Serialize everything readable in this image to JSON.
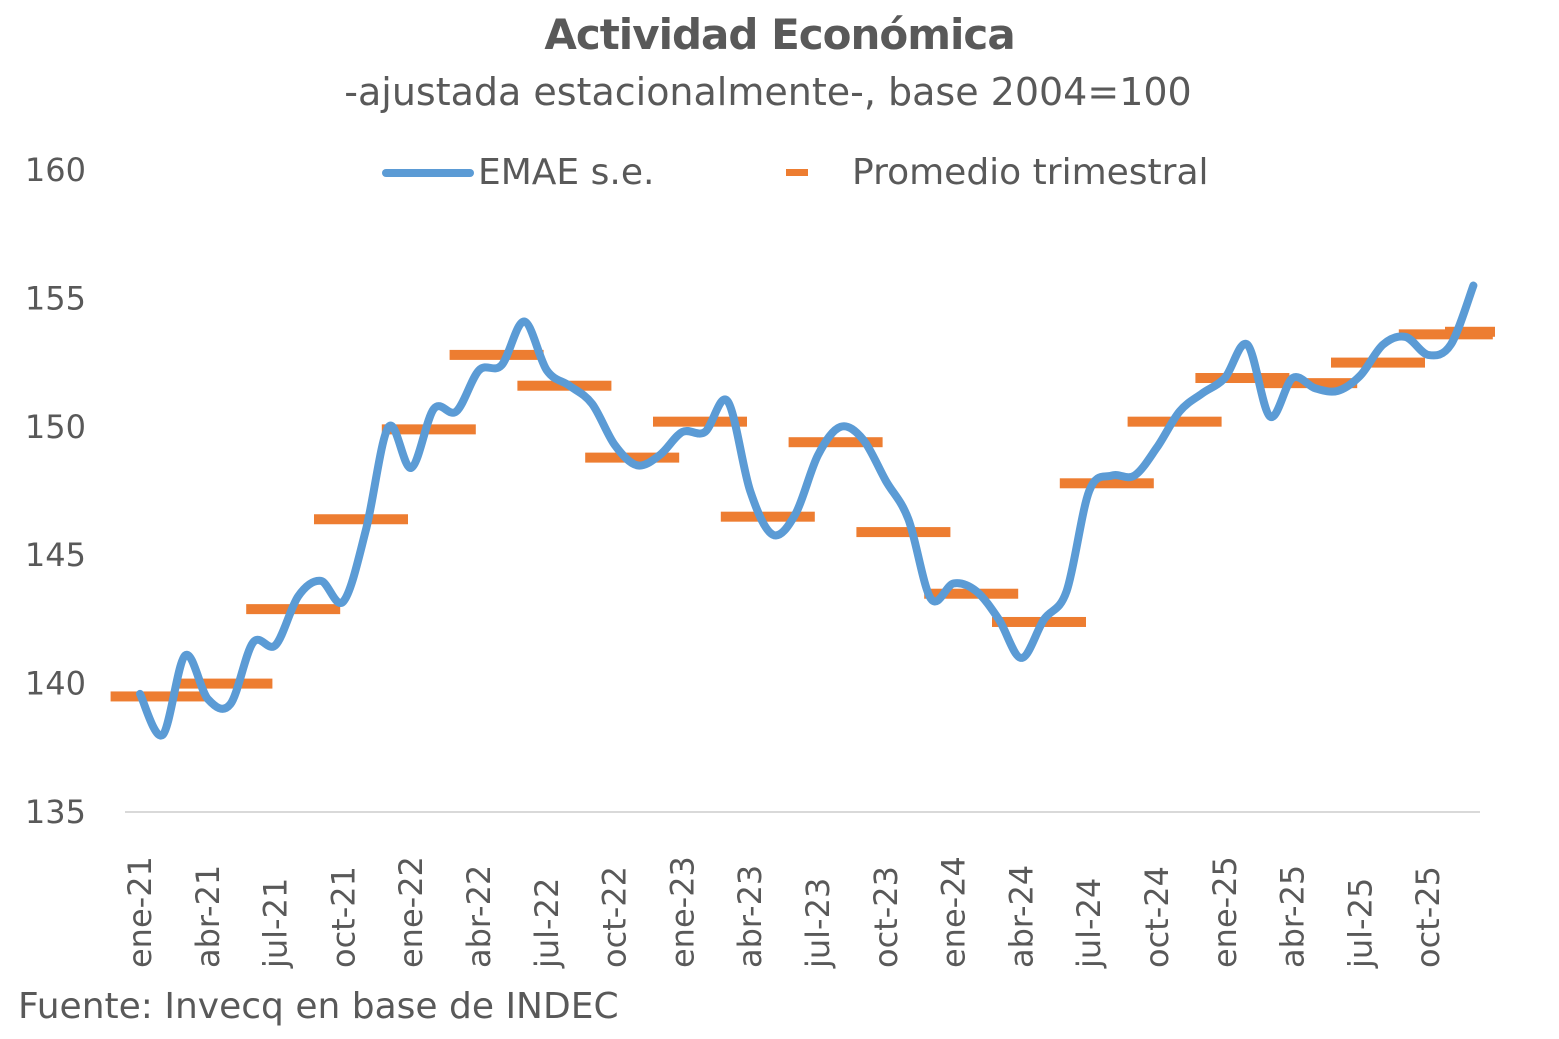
{
  "chart_data": {
    "type": "line",
    "title": "Actividad Económica",
    "subtitle": "-ajustada estacionalmente-, base 2004=100",
    "source": "Fuente: Invecq en base de INDEC",
    "ylim": [
      135,
      160
    ],
    "yticks": [
      "135",
      "140",
      "145",
      "150",
      "155",
      "160"
    ],
    "ytick_values": [
      135,
      140,
      145,
      150,
      155,
      160
    ],
    "xticks": [
      "ene-21",
      "abr-21",
      "jul-21",
      "oct-21",
      "ene-22",
      "abr-22",
      "jul-22",
      "oct-22",
      "ene-23",
      "abr-23",
      "jul-23",
      "oct-23",
      "ene-24",
      "abr-24",
      "jul-24",
      "oct-24",
      "ene-25",
      "abr-25",
      "jul-25",
      "oct-25"
    ],
    "grid": false,
    "legend_position": "top",
    "series": [
      {
        "name": "EMAE s.e.",
        "type": "line",
        "color": "#5B9BD5",
        "values": [
          139.6,
          138.0,
          141.1,
          139.4,
          139.2,
          141.6,
          141.5,
          143.4,
          144.0,
          143.2,
          146.0,
          150.0,
          148.4,
          150.7,
          150.6,
          152.2,
          152.4,
          154.1,
          152.2,
          151.6,
          150.9,
          149.3,
          148.5,
          148.9,
          149.8,
          149.8,
          151.0,
          147.5,
          145.8,
          146.6,
          148.9,
          150.0,
          149.5,
          147.9,
          146.4,
          143.3,
          143.9,
          143.6,
          142.5,
          141.0,
          142.5,
          143.6,
          147.5,
          148.1,
          148.1,
          149.2,
          150.6,
          151.3,
          151.9,
          153.2,
          150.4,
          151.9,
          151.5,
          151.4,
          152.0,
          153.2,
          153.5,
          152.8,
          153.2,
          155.5
        ]
      },
      {
        "name": "Promedio trimestral",
        "type": "step-marker",
        "color": "#ED7D31",
        "values": [
          139.5,
          140.0,
          142.9,
          146.4,
          149.9,
          152.8,
          151.6,
          148.8,
          150.2,
          146.5,
          149.4,
          145.9,
          143.5,
          142.4,
          147.8,
          150.2,
          151.9,
          151.7,
          152.5,
          153.6,
          153.7
        ]
      }
    ]
  }
}
